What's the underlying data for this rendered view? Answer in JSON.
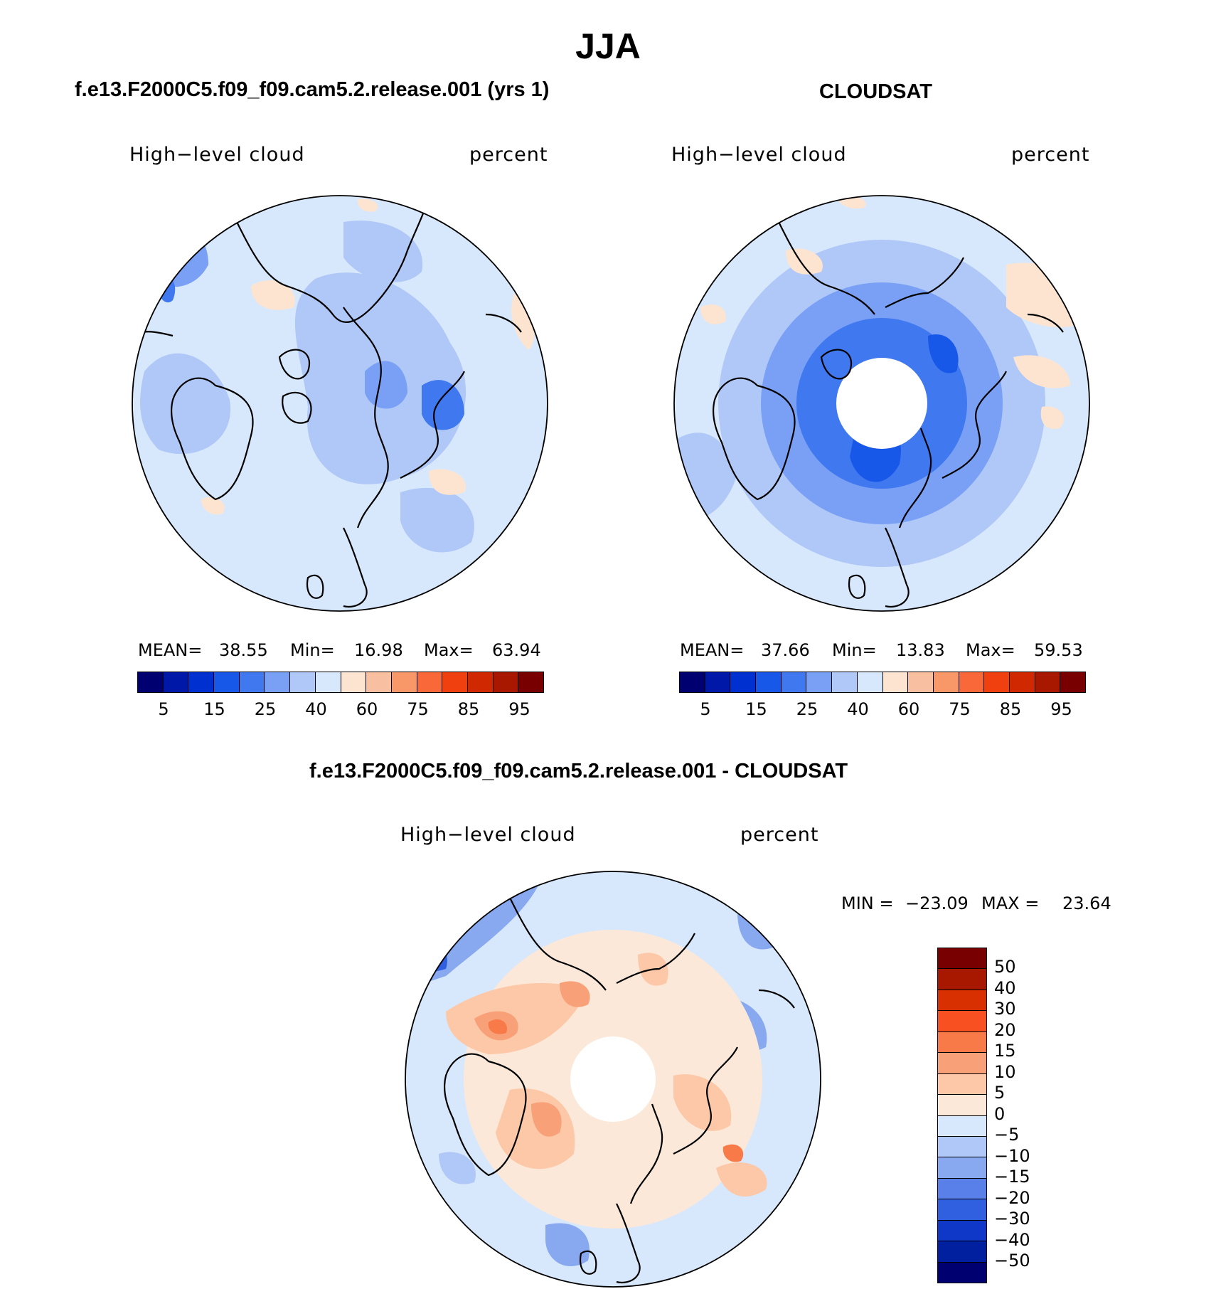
{
  "title": "JJA",
  "panels": [
    {
      "subtitle": "f.e13.F2000C5.f09_f09.cam5.2.release.001 (yrs 1)",
      "left_label": "High−level cloud",
      "right_label": "percent",
      "stats": {
        "mean_label": "MEAN=",
        "mean": "38.55",
        "min_label": "Min=",
        "min": "16.98",
        "max_label": "Max=",
        "max": "63.94"
      }
    },
    {
      "subtitle": "CLOUDSAT",
      "left_label": "High−level cloud",
      "right_label": "percent",
      "stats": {
        "mean_label": "MEAN=",
        "mean": "37.66",
        "min_label": "Min=",
        "min": "13.83",
        "max_label": "Max=",
        "max": "59.53"
      }
    },
    {
      "subtitle": "f.e13.F2000C5.f09_f09.cam5.2.release.001 - CLOUDSAT",
      "left_label": "High−level cloud",
      "right_label": "percent",
      "stats": {
        "min_label": "MIN =",
        "min": "−23.09",
        "max_label": "MAX =",
        "max": "23.64"
      }
    }
  ],
  "colorbar_abs": {
    "colors": [
      "#000070",
      "#0018A8",
      "#0030D0",
      "#1858E8",
      "#4078F0",
      "#7AA0F5",
      "#B0C8F8",
      "#D8E8FC",
      "#FCE4D0",
      "#F8C0A0",
      "#F89868",
      "#F86838",
      "#F04010",
      "#D02800",
      "#A81800",
      "#780000"
    ],
    "tick_labels": [
      "5",
      "15",
      "25",
      "40",
      "60",
      "75",
      "85",
      "95"
    ]
  },
  "colorbar_diff": {
    "colors": [
      "#780000",
      "#A81800",
      "#D83000",
      "#F85020",
      "#F87A48",
      "#F8A078",
      "#FCC8A8",
      "#FCE8D8",
      "#D8E8FC",
      "#B0C8F8",
      "#88A8F0",
      "#5880E8",
      "#3060E0",
      "#1038C8",
      "#0020A0",
      "#000070"
    ],
    "tick_labels": [
      "50",
      "40",
      "30",
      "20",
      "15",
      "10",
      "5",
      "0",
      "−5",
      "−10",
      "−15",
      "−20",
      "−30",
      "−40",
      "−50"
    ]
  }
}
